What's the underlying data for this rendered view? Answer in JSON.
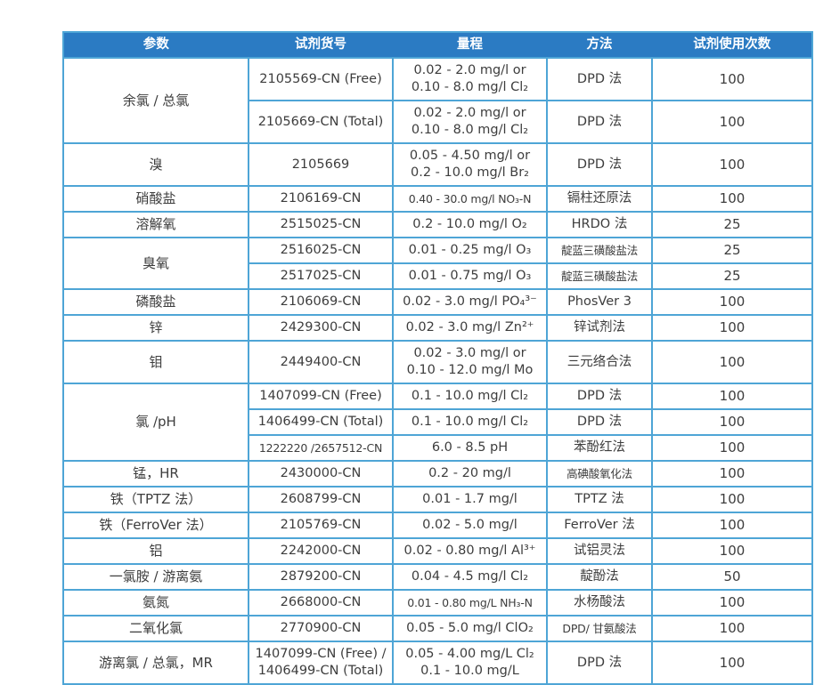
{
  "theme": {
    "header_bg": "#2b7bc3",
    "header_text": "#ffffff",
    "border_color": "#4ea5d6",
    "body_text": "#3d3d3d",
    "row_bg": "#ffffff"
  },
  "table": {
    "columns": [
      {
        "key": "param",
        "label": "参数"
      },
      {
        "key": "catalog",
        "label": "试剂货号"
      },
      {
        "key": "range",
        "label": "量程"
      },
      {
        "key": "method",
        "label": "方法"
      },
      {
        "key": "uses",
        "label": "试剂使用次数"
      }
    ],
    "rows": [
      {
        "param": "余氯 / 总氯",
        "param_rowspan": 2,
        "catalog": "2105569-CN (Free)",
        "range": "0.02 - 2.0 mg/l or\n0.10 - 8.0 mg/l Cl₂",
        "method": "DPD 法",
        "uses": "100"
      },
      {
        "catalog": "2105669-CN (Total)",
        "range": "0.02 - 2.0 mg/l or\n0.10 - 8.0 mg/l Cl₂",
        "method": "DPD 法",
        "uses": "100"
      },
      {
        "param": "溴",
        "catalog": "2105669",
        "range": "0.05 - 4.50 mg/l or\n0.2 - 10.0 mg/l Br₂",
        "method": "DPD 法",
        "uses": "100"
      },
      {
        "param": "硝酸盐",
        "catalog": "2106169-CN",
        "range": "0.40 - 30.0 mg/l NO₃-N",
        "range_small": true,
        "method": "镉柱还原法",
        "uses": "100"
      },
      {
        "param": "溶解氧",
        "catalog": "2515025-CN",
        "range": "0.2 - 10.0 mg/l O₂",
        "method": "HRDO 法",
        "uses": "25"
      },
      {
        "param": "臭氧",
        "param_rowspan": 2,
        "catalog": "2516025-CN",
        "range": "0.01 - 0.25 mg/l O₃",
        "method": "靛蓝三磺酸盐法",
        "method_small": true,
        "uses": "25"
      },
      {
        "catalog": "2517025-CN",
        "range": "0.01 - 0.75 mg/l O₃",
        "method": "靛蓝三磺酸盐法",
        "method_small": true,
        "uses": "25"
      },
      {
        "param": "磷酸盐",
        "catalog": "2106069-CN",
        "range": "0.02 - 3.0 mg/l PO₄³⁻",
        "method": "PhosVer 3",
        "uses": "100"
      },
      {
        "param": "锌",
        "catalog": "2429300-CN",
        "range": "0.02 - 3.0 mg/l Zn²⁺",
        "method": "锌试剂法",
        "uses": "100"
      },
      {
        "param": "钼",
        "catalog": "2449400-CN",
        "range": "0.02 - 3.0 mg/l or\n0.10 - 12.0 mg/l Mo",
        "method": "三元络合法",
        "uses": "100"
      },
      {
        "param": "氯 /pH",
        "param_rowspan": 3,
        "catalog": "1407099-CN (Free)",
        "range": "0.1 - 10.0 mg/l Cl₂",
        "method": "DPD 法",
        "uses": "100"
      },
      {
        "catalog": "1406499-CN (Total)",
        "range": "0.1 - 10.0 mg/l Cl₂",
        "method": "DPD 法",
        "uses": "100"
      },
      {
        "catalog": "1222220 /2657512-CN",
        "catalog_small": true,
        "range": "6.0 - 8.5 pH",
        "method": "苯酚红法",
        "uses": "100"
      },
      {
        "param": "锰，HR",
        "catalog": "2430000-CN",
        "range": "0.2 - 20 mg/l",
        "method": "高碘酸氧化法",
        "method_small": true,
        "uses": "100"
      },
      {
        "param": "铁（TPTZ 法）",
        "catalog": "2608799-CN",
        "range": "0.01 - 1.7 mg/l",
        "method": "TPTZ 法",
        "uses": "100"
      },
      {
        "param": "铁（FerroVer 法）",
        "catalog": "2105769-CN",
        "range": "0.02 - 5.0 mg/l",
        "method": "FerroVer 法",
        "uses": "100"
      },
      {
        "param": "铝",
        "catalog": "2242000-CN",
        "range": "0.02 - 0.80 mg/l Al³⁺",
        "method": "试铝灵法",
        "uses": "100"
      },
      {
        "param": "一氯胺 / 游离氨",
        "catalog": "2879200-CN",
        "range": "0.04 - 4.5 mg/l Cl₂",
        "method": "靛酚法",
        "uses": "50"
      },
      {
        "param": "氨氮",
        "catalog": "2668000-CN",
        "range": "0.01 - 0.80 mg/L NH₃-N",
        "range_small": true,
        "method": "水杨酸法",
        "uses": "100"
      },
      {
        "param": "二氧化氯",
        "catalog": "2770900-CN",
        "range": "0.05 - 5.0 mg/l ClO₂",
        "method": "DPD/ 甘氨酸法",
        "method_small": true,
        "uses": "100"
      },
      {
        "param": "游离氯 / 总氯，MR",
        "catalog": "1407099-CN (Free) /\n1406499-CN (Total)",
        "range": "0.05 - 4.00 mg/L Cl₂\n0.1 - 10.0 mg/L",
        "method": "DPD 法",
        "uses": "100"
      }
    ]
  }
}
